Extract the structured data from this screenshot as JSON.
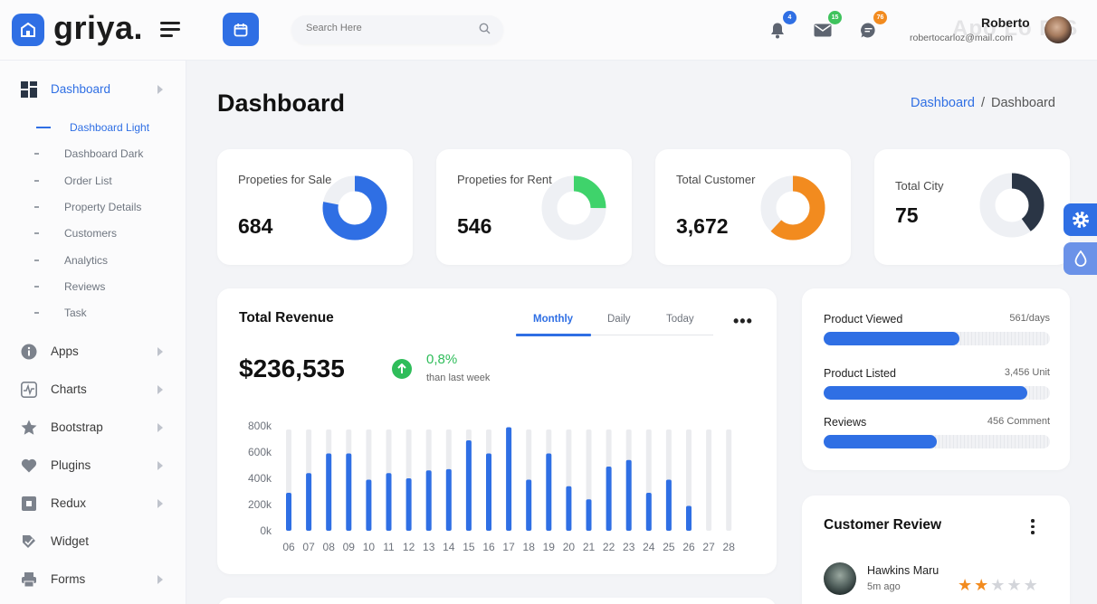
{
  "brand": {
    "name": "griya."
  },
  "header": {
    "search_placeholder": "Search Here",
    "notifications": [
      {
        "icon": "bell-icon",
        "count": "4",
        "color": "#2f6fe4"
      },
      {
        "icon": "mail-icon",
        "count": "15",
        "color": "#3fc35d"
      },
      {
        "icon": "chat-icon",
        "count": "76",
        "color": "#f28b1f"
      }
    ],
    "user": {
      "name": "Roberto",
      "email": "robertocarloz@mail.com"
    },
    "watermark": "Apo Lo RIS"
  },
  "sidebar": {
    "items": [
      {
        "label": "Dashboard",
        "icon": "grid-icon",
        "active": true,
        "has_children": true
      },
      {
        "label": "Apps",
        "icon": "info-icon",
        "has_children": true
      },
      {
        "label": "Charts",
        "icon": "chart-icon",
        "has_children": true
      },
      {
        "label": "Bootstrap",
        "icon": "star-icon",
        "has_children": true
      },
      {
        "label": "Plugins",
        "icon": "heart-icon",
        "has_children": true
      },
      {
        "label": "Redux",
        "icon": "square-icon",
        "has_children": true
      },
      {
        "label": "Widget",
        "icon": "widget-icon",
        "has_children": false
      },
      {
        "label": "Forms",
        "icon": "printer-icon",
        "has_children": true
      }
    ],
    "sub_items": [
      {
        "label": "Dashboard Light",
        "active": true
      },
      {
        "label": "Dashboard Dark"
      },
      {
        "label": "Order List"
      },
      {
        "label": "Property Details"
      },
      {
        "label": "Customers"
      },
      {
        "label": "Analytics"
      },
      {
        "label": "Reviews"
      },
      {
        "label": "Task"
      }
    ]
  },
  "page": {
    "title": "Dashboard",
    "breadcrumb": {
      "link": "Dashboard",
      "separator": "/",
      "current": "Dashboard"
    }
  },
  "stats": [
    {
      "label": "Propeties for Sale",
      "value": "684",
      "color": "#2f6fe4",
      "fraction": 0.78
    },
    {
      "label": "Propeties for Rent",
      "value": "546",
      "color": "#3fd36b",
      "fraction": 0.25
    },
    {
      "label": "Total Customer",
      "value": "3,672",
      "color": "#f28b1f",
      "fraction": 0.62
    },
    {
      "label": "Total City",
      "value": "75",
      "color": "#2a3545",
      "fraction": 0.4
    }
  ],
  "revenue": {
    "title": "Total Revenue",
    "tabs": [
      "Monthly",
      "Daily",
      "Today"
    ],
    "active_tab": "Monthly",
    "amount": "$236,535",
    "change": "0,8%",
    "change_sub": "than last week"
  },
  "chart_data": {
    "type": "bar",
    "categories": [
      "06",
      "07",
      "08",
      "09",
      "10",
      "11",
      "12",
      "13",
      "14",
      "15",
      "16",
      "17",
      "18",
      "19",
      "20",
      "21",
      "22",
      "23",
      "24",
      "25",
      "26",
      "27",
      "28"
    ],
    "values": [
      290000,
      440000,
      590000,
      590000,
      390000,
      440000,
      400000,
      460000,
      470000,
      690000,
      590000,
      790000,
      390000,
      590000,
      340000,
      240000,
      490000,
      540000,
      290000,
      390000,
      190000,
      0,
      0
    ],
    "y_ticks": [
      "0k",
      "200k",
      "400k",
      "600k",
      "800k"
    ],
    "ylim": [
      0,
      800000
    ],
    "bar_color": "#2f6fe4",
    "track_color": "#ebecef"
  },
  "products": [
    {
      "label": "Product Viewed",
      "value": "561/days",
      "fraction": 0.6
    },
    {
      "label": "Product Listed",
      "value": "3,456 Unit",
      "fraction": 0.9
    },
    {
      "label": "Reviews",
      "value": "456 Comment",
      "fraction": 0.5
    }
  ],
  "customer_review": {
    "title": "Customer Review",
    "reviewer": {
      "name": "Hawkins Maru",
      "time": "5m ago",
      "rating": 2,
      "max_rating": 5
    }
  },
  "side_tabs": [
    {
      "icon": "gear-icon",
      "color": "#2f6fe4"
    },
    {
      "icon": "drop-icon",
      "color": "#6b92e8"
    }
  ]
}
